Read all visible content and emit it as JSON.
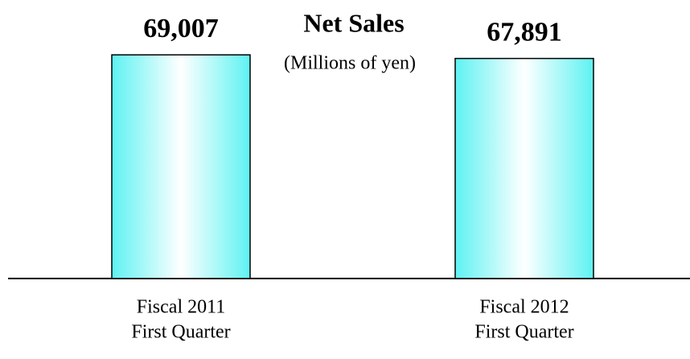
{
  "chart_data": {
    "type": "bar",
    "title": "Net Sales",
    "subtitle": "(Millions of yen)",
    "categories": [
      [
        "Fiscal 2011",
        "First Quarter"
      ],
      [
        "Fiscal 2012",
        "First Quarter"
      ]
    ],
    "values": [
      69007,
      67891
    ],
    "value_labels": [
      "69,007",
      "67,891"
    ],
    "color": "#5ef2f2",
    "ylim": [
      0,
      75000
    ]
  }
}
